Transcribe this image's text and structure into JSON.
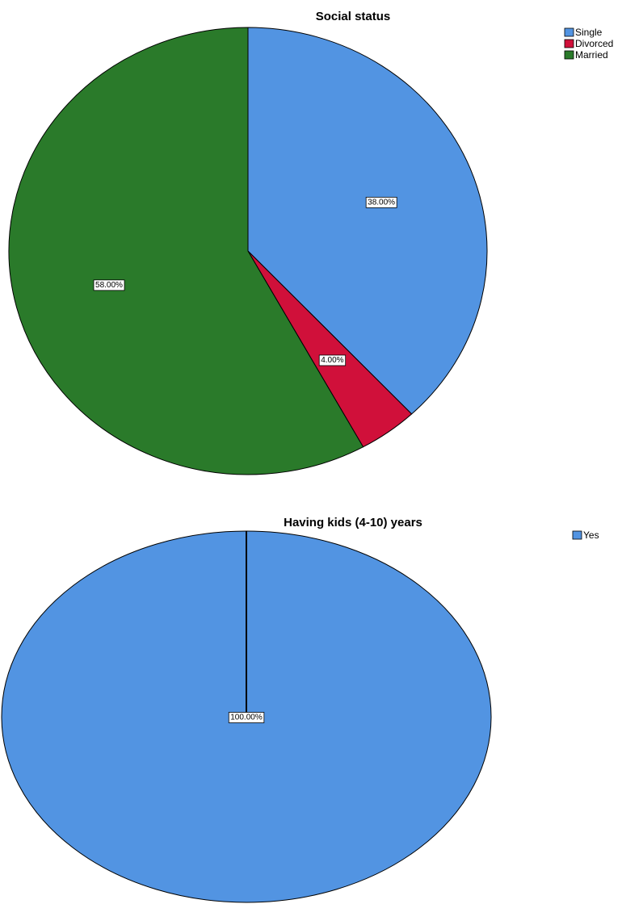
{
  "chart_data": [
    {
      "type": "pie",
      "title": "Social status",
      "series": [
        {
          "name": "Single",
          "value": 38.0,
          "label": "38.00%",
          "color": "#5294e2"
        },
        {
          "name": "Divorced",
          "value": 4.0,
          "label": "4.00%",
          "color": "#d0103a"
        },
        {
          "name": "Married",
          "value": 58.0,
          "label": "58.00%",
          "color": "#2a7a2a"
        }
      ],
      "legend": {
        "placement": "top-right"
      }
    },
    {
      "type": "pie",
      "title": "Having kids (4-10) years",
      "series": [
        {
          "name": "Yes",
          "value": 100.0,
          "label": "100.00%",
          "color": "#5294e2"
        }
      ],
      "legend": {
        "placement": "top-right"
      }
    }
  ]
}
